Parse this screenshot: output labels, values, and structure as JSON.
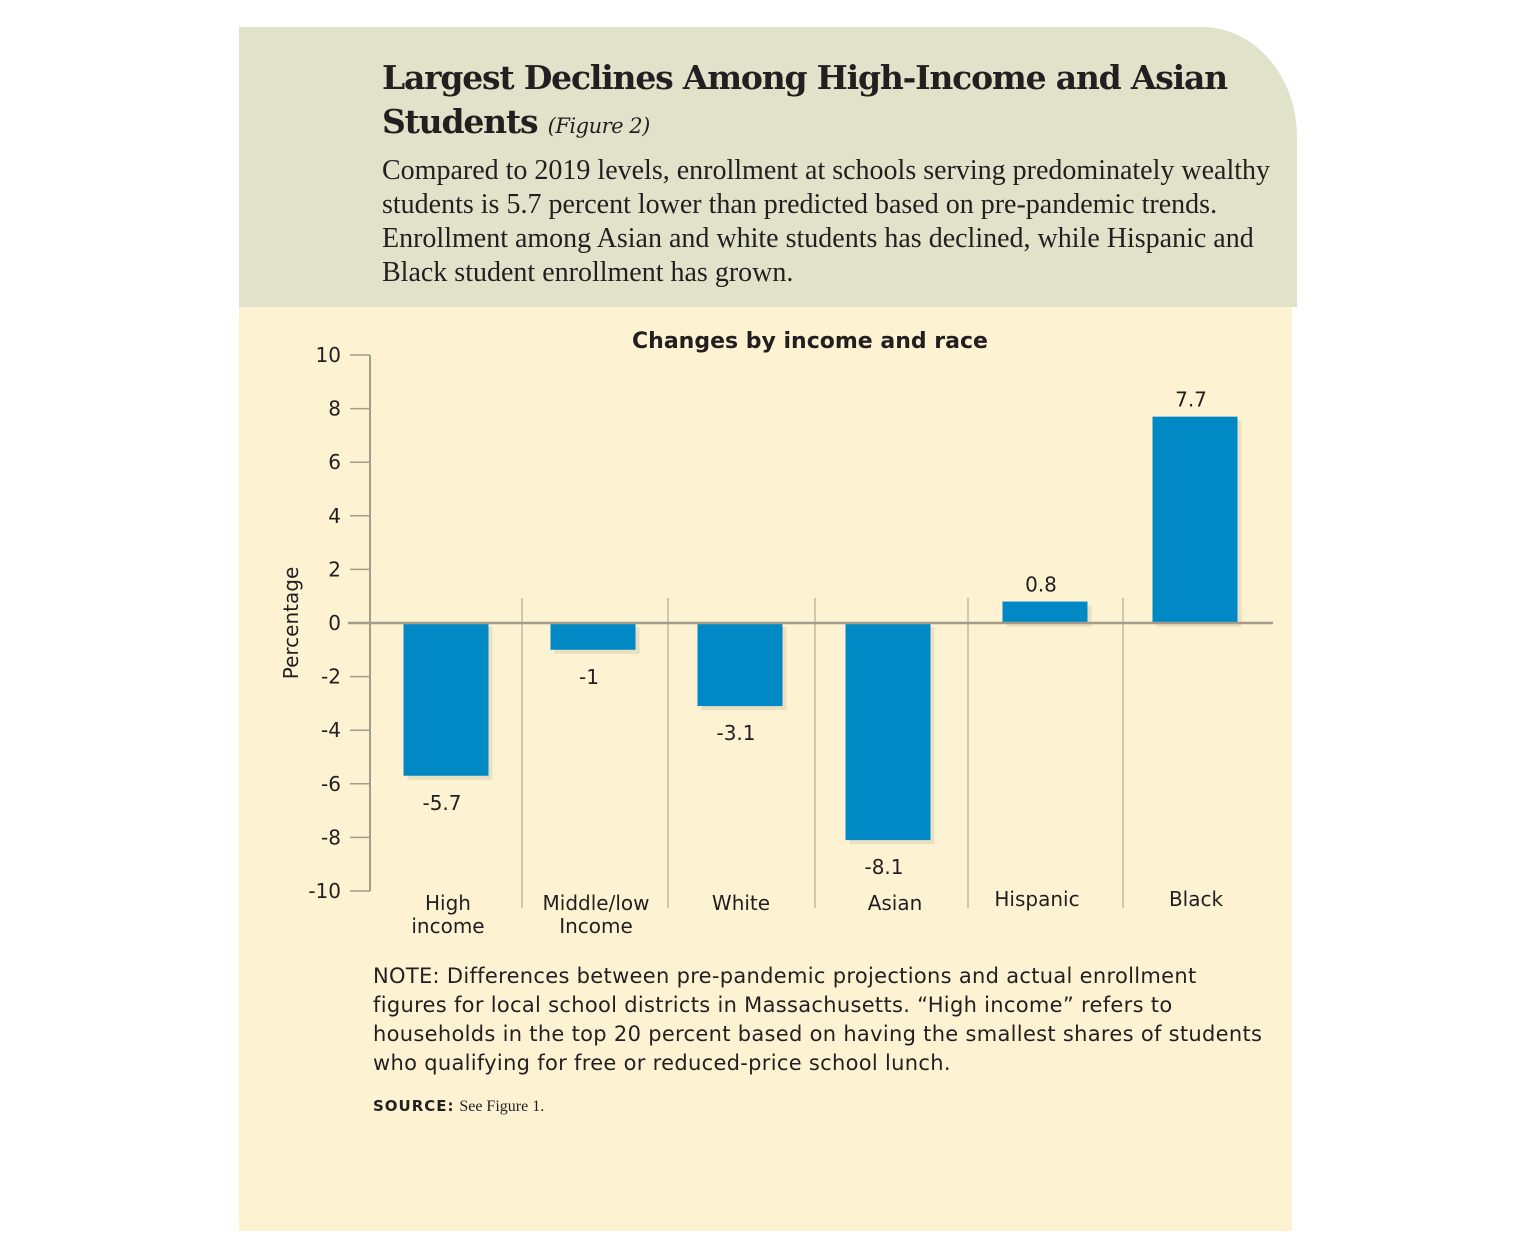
{
  "header": {
    "title": "Largest Declines Among High-Income and Asian Students",
    "figure_label": "(Figure 2)",
    "subtitle": "Compared to 2019 levels, enrollment at schools serving predominately wealthy students is 5.7 percent lower than predicted based on pre-pandemic trends. Enrollment among Asian and white students has declined, while Hispanic and Black student enrollment has grown."
  },
  "chart_data": {
    "type": "bar",
    "title": "Changes by income and race",
    "ylabel": "Percentage",
    "xlabel": "",
    "categories": [
      "High income",
      "Middle/low Income",
      "White",
      "Asian",
      "Hispanic",
      "Black"
    ],
    "values": [
      -5.7,
      -1,
      -3.1,
      -8.1,
      0.8,
      7.7
    ],
    "data_labels": [
      "-5.7",
      "-1",
      "-3.1",
      "-8.1",
      "0.8",
      "7.7"
    ],
    "ylim": [
      -10,
      10
    ],
    "yticks": [
      "10",
      "8",
      "6",
      "4",
      "2",
      "0",
      "-2",
      "-4",
      "-6",
      "-8",
      "-10"
    ],
    "grid": false,
    "bar_color": "#0089c4"
  },
  "footer": {
    "note": "NOTE: Differences between pre-pandemic projections and actual enrollment figures for local school districts in Massachusetts. “High income” refers to households in the top 20 percent based on having the smallest shares of students who qualifying for free or reduced-price school lunch.",
    "source_label": "SOURCE:",
    "source_text": "See Figure 1."
  },
  "colors": {
    "header_bg": "#e0e3c9",
    "body_bg": "#fdf3d3",
    "axis": "#a39c8a"
  }
}
